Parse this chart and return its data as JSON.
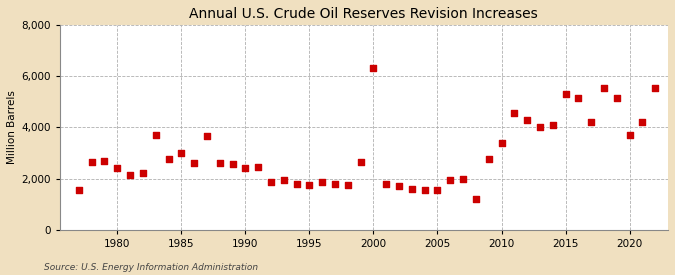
{
  "title": "Annual U.S. Crude Oil Reserves Revision Increases",
  "ylabel": "Million Barrels",
  "source": "Source: U.S. Energy Information Administration",
  "background_color": "#f0e0c0",
  "plot_background_color": "#ffffff",
  "marker_color": "#cc0000",
  "marker_size": 4,
  "xlim": [
    1975.5,
    2023.0
  ],
  "ylim": [
    0,
    8000
  ],
  "yticks": [
    0,
    2000,
    4000,
    6000,
    8000
  ],
  "xticks": [
    1980,
    1985,
    1990,
    1995,
    2000,
    2005,
    2010,
    2015,
    2020
  ],
  "years": [
    1977,
    1978,
    1979,
    1980,
    1981,
    1982,
    1983,
    1984,
    1985,
    1986,
    1987,
    1988,
    1989,
    1990,
    1991,
    1992,
    1993,
    1994,
    1995,
    1996,
    1997,
    1998,
    1999,
    2000,
    2001,
    2002,
    2003,
    2004,
    2005,
    2006,
    2007,
    2008,
    2009,
    2010,
    2011,
    2012,
    2013,
    2014,
    2015,
    2016,
    2017,
    2018,
    2019,
    2020,
    2021,
    2022
  ],
  "values": [
    1550,
    2650,
    2700,
    2400,
    2150,
    2200,
    3700,
    2750,
    3000,
    2600,
    3650,
    2600,
    2550,
    2400,
    2450,
    1850,
    1950,
    1800,
    1750,
    1850,
    1800,
    1750,
    2650,
    6300,
    1800,
    1700,
    1600,
    1550,
    1550,
    1950,
    2000,
    1200,
    2750,
    3400,
    4550,
    4300,
    4000,
    4100,
    5300,
    5150,
    4200,
    5550,
    5150,
    3700,
    4200,
    5550
  ]
}
